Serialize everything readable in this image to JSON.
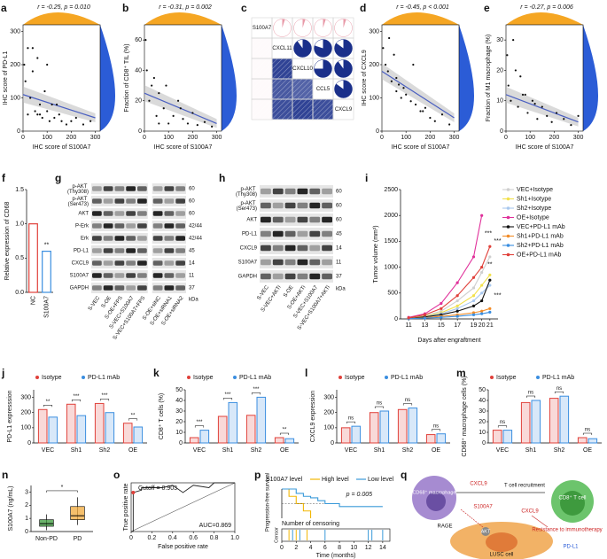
{
  "chart_data": [
    {
      "type": "scatter",
      "panel": "a",
      "stat": "r = -0.25, p = 0.010",
      "xlabel": "IHC score of S100A7",
      "ylabel": "IHC score of PD-L1",
      "xlim": [
        0,
        320
      ],
      "ylim": [
        0,
        320
      ],
      "xticks": [
        0,
        100,
        200,
        300
      ],
      "yticks": [
        0,
        100,
        200,
        300
      ],
      "x": [
        5,
        10,
        20,
        30,
        40,
        50,
        60,
        70,
        80,
        90,
        100,
        110,
        120,
        130,
        150,
        160,
        180,
        200,
        220,
        250,
        280,
        20,
        60,
        100,
        140,
        40,
        70
      ],
      "y": [
        200,
        150,
        250,
        100,
        180,
        60,
        220,
        50,
        40,
        120,
        60,
        30,
        80,
        40,
        50,
        30,
        20,
        30,
        40,
        20,
        30,
        50,
        50,
        200,
        80,
        250,
        80
      ],
      "fit_x": [
        0,
        300
      ],
      "fit_y": [
        110,
        40
      ],
      "top_color": "#f5a623",
      "right_color": "#2b5cd6",
      "fit_color": "#4a5fc1",
      "point_color": "#111"
    },
    {
      "type": "scatter",
      "panel": "b",
      "stat": "r = -0.31, p = 0.002",
      "xlabel": "IHC score of S100A7",
      "ylabel": "Fraction of CD8⁺ TIL (%)",
      "xlim": [
        0,
        320
      ],
      "ylim": [
        0,
        70
      ],
      "xticks": [
        0,
        100,
        200,
        300
      ],
      "yticks": [
        0,
        20,
        40,
        60
      ],
      "x": [
        5,
        10,
        20,
        30,
        50,
        60,
        80,
        100,
        120,
        140,
        160,
        180,
        200,
        220,
        250,
        280,
        40,
        90,
        150,
        60
      ],
      "y": [
        60,
        40,
        20,
        30,
        10,
        25,
        15,
        5,
        10,
        20,
        8,
        5,
        12,
        4,
        6,
        3,
        35,
        30,
        15,
        5
      ],
      "fit_x": [
        0,
        300
      ],
      "fit_y": [
        25,
        5
      ],
      "top_color": "#f5a623",
      "right_color": "#2b5cd6",
      "fit_color": "#4a5fc1",
      "point_color": "#111"
    },
    {
      "type": "corr",
      "panel": "c",
      "labels": [
        "S100A7",
        "CXCL11",
        "CXCL10",
        "CCL5",
        "CXCL9"
      ],
      "matrix": [
        [
          null,
          -0.05,
          -0.05,
          -0.05,
          -0.05
        ],
        [
          -0.05,
          null,
          0.9,
          0.8,
          0.85
        ],
        [
          -0.05,
          0.9,
          null,
          0.75,
          0.9
        ],
        [
          -0.05,
          0.8,
          0.75,
          null,
          0.85
        ],
        [
          -0.05,
          0.85,
          0.9,
          0.85,
          null
        ]
      ],
      "pos_color": "#1a2f8a",
      "neg_color": "#e89aa8"
    },
    {
      "type": "scatter",
      "panel": "d",
      "stat": "r = -0.45, p < 0.001",
      "xlabel": "IHC score of S100A7",
      "ylabel": "IHC score of CXCL9",
      "xlim": [
        0,
        320
      ],
      "ylim": [
        0,
        320
      ],
      "xticks": [
        0,
        100,
        200,
        300
      ],
      "yticks": [
        0,
        100,
        200,
        300
      ],
      "x": [
        5,
        15,
        25,
        40,
        50,
        60,
        70,
        80,
        100,
        120,
        140,
        160,
        180,
        200,
        220,
        250,
        280,
        30,
        90,
        130,
        170,
        60
      ],
      "y": [
        250,
        200,
        180,
        150,
        230,
        120,
        140,
        100,
        110,
        90,
        80,
        60,
        70,
        40,
        30,
        50,
        20,
        280,
        130,
        200,
        60,
        160
      ],
      "fit_x": [
        0,
        300
      ],
      "fit_y": [
        180,
        40
      ],
      "top_color": "#f5a623",
      "right_color": "#2b5cd6",
      "fit_color": "#4a5fc1",
      "point_color": "#111"
    },
    {
      "type": "scatter",
      "panel": "e",
      "stat": "r = -0.27, p = 0.006",
      "xlabel": "IHC score of S100A7",
      "ylabel": "Fraction of M1 macrophage (%)",
      "xlim": [
        0,
        320
      ],
      "ylim": [
        0,
        35
      ],
      "xticks": [
        0,
        100,
        200,
        300
      ],
      "yticks": [
        0,
        10,
        20,
        30
      ],
      "x": [
        5,
        10,
        20,
        40,
        50,
        70,
        90,
        110,
        130,
        150,
        170,
        190,
        210,
        240,
        270,
        300,
        30,
        80,
        120,
        60
      ],
      "y": [
        25,
        15,
        10,
        20,
        8,
        12,
        6,
        10,
        4,
        8,
        5,
        3,
        6,
        4,
        2,
        5,
        30,
        12,
        9,
        18
      ],
      "fit_x": [
        0,
        300
      ],
      "fit_y": [
        12,
        3
      ],
      "top_color": "#f5a623",
      "right_color": "#2b5cd6",
      "fit_color": "#4a5fc1",
      "point_color": "#111"
    },
    {
      "type": "bar",
      "panel": "f",
      "categories": [
        "NC",
        "S100A7"
      ],
      "values": [
        1.0,
        0.6
      ],
      "colors": [
        "#e0403a",
        "#3a8ee0"
      ],
      "ylim": [
        0,
        1.5
      ],
      "yticks": [
        {
          "value": 0,
          "label": "0.0"
        },
        0.5,
        {
          "value": 1,
          "label": "1.0"
        },
        1.5
      ],
      "ylabel": "Relative expression of CD68",
      "annotation": "**"
    },
    {
      "type": "blot",
      "panel": "g",
      "rows": [
        "p-AKT (Thy308)",
        "p-AKT (Ser473)",
        "AKT",
        "P-Erk",
        "Erk",
        "PD-L1",
        "CXCL9",
        "S100A7",
        "GAPDH"
      ],
      "kda": [
        "60",
        "60",
        "60",
        "42/44",
        "42/44",
        "45",
        "14",
        "11",
        "37"
      ],
      "unit": "kDa",
      "lanes": [
        "S-VEC",
        "S-OE",
        "S-OE+FPS",
        "S-VEC+S100A7",
        "S-VEC+S100A7+FPS",
        "S-OE+siNC",
        "S-OE+siRNA1",
        "S-OE+siRNA2"
      ]
    },
    {
      "type": "blot",
      "panel": "h",
      "rows": [
        "p-AKT (Thy308)",
        "p-AKT (Ser473)",
        "AKT",
        "PD-L1",
        "CXCL9",
        "S100A7",
        "GAPDH"
      ],
      "kda": [
        "60",
        "60",
        "60",
        "45",
        "14",
        "11",
        "37"
      ],
      "unit": "kDa",
      "lanes": [
        "S-VEC",
        "S-VEC+AKTi",
        "S-OE",
        "S-OE+AKTi",
        "S-VEC+S100A7",
        "S-VEC+S100A7+AKTi"
      ]
    },
    {
      "type": "line",
      "panel": "i",
      "x": [
        11,
        13,
        15,
        17,
        19,
        20,
        21
      ],
      "xlim": [
        10,
        22
      ],
      "xticks": [
        11,
        13,
        15,
        17,
        19,
        20,
        21
      ],
      "ylim": [
        0,
        2500
      ],
      "yticks": [
        0,
        500,
        1000,
        1500,
        2000,
        2500
      ],
      "xlabel": "Days after engraftment",
      "ylabel": "Tumor volume (mm³)",
      "series": [
        {
          "name": "VEC+Isotype",
          "color": "#cfcfcf",
          "values": [
            20,
            60,
            150,
            350,
            600,
            900,
            1200
          ]
        },
        {
          "name": "Sh1+Isotype",
          "color": "#f2e14c",
          "values": [
            15,
            50,
            120,
            250,
            450,
            650,
            850
          ]
        },
        {
          "name": "Sh2+Isotype",
          "color": "#a9c8ee",
          "values": [
            15,
            40,
            100,
            200,
            350,
            500,
            650
          ]
        },
        {
          "name": "OE+Isotype",
          "color": "#e0309a",
          "values": [
            30,
            100,
            300,
            700,
            1200,
            2000,
            null
          ]
        },
        {
          "name": "VEC+PD-L1 mAb",
          "color": "#111111",
          "values": [
            10,
            40,
            80,
            150,
            250,
            350,
            750
          ]
        },
        {
          "name": "Sh1+PD-L1 mAb",
          "color": "#f28c28",
          "values": [
            10,
            20,
            50,
            80,
            120,
            150,
            200
          ]
        },
        {
          "name": "Sh2+PD-L1 mAb",
          "color": "#3a8ee0",
          "values": [
            5,
            15,
            30,
            50,
            80,
            100,
            130
          ]
        },
        {
          "name": "OE+PD-L1 mAb",
          "color": "#e0403a",
          "values": [
            20,
            80,
            200,
            450,
            800,
            1000,
            1400
          ]
        }
      ],
      "annotations": [
        "***",
        "**",
        "***",
        "***"
      ]
    },
    {
      "type": "group",
      "panel": "j",
      "categories": [
        "VEC",
        "Sh1",
        "Sh2",
        "OE"
      ],
      "ylim": [
        0,
        350
      ],
      "yticks": [
        0,
        100,
        200,
        300
      ],
      "ylabel": "PD-L1 expresssion",
      "series": [
        {
          "name": "Isotype",
          "color": "#e0403a",
          "values": [
            220,
            255,
            260,
            130
          ]
        },
        {
          "name": "PD-L1 mAb",
          "color": "#3a8ee0",
          "values": [
            170,
            180,
            200,
            105
          ]
        }
      ],
      "pair_labels": [
        "**",
        "***",
        "***",
        "**"
      ]
    },
    {
      "type": "group",
      "panel": "k",
      "categories": [
        "VEC",
        "Sh1",
        "Sh2",
        "OE"
      ],
      "ylim": [
        0,
        50
      ],
      "yticks": [
        0,
        10,
        20,
        30,
        40,
        50
      ],
      "ylabel": "CD8⁺ T cells (%)",
      "series": [
        {
          "name": "Isotype",
          "color": "#e0403a",
          "values": [
            5,
            25,
            26,
            5
          ]
        },
        {
          "name": "PD-L1 mAb",
          "color": "#3a8ee0",
          "values": [
            12,
            38,
            43,
            4
          ]
        }
      ],
      "pair_labels": [
        "***",
        "***",
        "***",
        "**"
      ]
    },
    {
      "type": "group",
      "panel": "l",
      "categories": [
        "VEC",
        "Sh1",
        "Sh2",
        "OE"
      ],
      "ylim": [
        0,
        350
      ],
      "yticks": [
        0,
        100,
        200,
        300
      ],
      "ylabel": "CXCL9 expression",
      "series": [
        {
          "name": "Isotype",
          "color": "#e0403a",
          "values": [
            100,
            200,
            220,
            55
          ]
        },
        {
          "name": "PD-L1 mAb",
          "color": "#3a8ee0",
          "values": [
            110,
            210,
            230,
            60
          ]
        }
      ],
      "pair_labels": [
        "ns",
        "ns",
        "ns",
        "ns"
      ]
    },
    {
      "type": "group",
      "panel": "m",
      "categories": [
        "VEC",
        "Sh1",
        "Sh2",
        "OE"
      ],
      "ylim": [
        0,
        50
      ],
      "yticks": [
        0,
        10,
        20,
        30,
        40,
        50
      ],
      "ylabel": "CD68⁺ macrophage cells (%)",
      "series": [
        {
          "name": "Isotype",
          "color": "#e0403a",
          "values": [
            12,
            38,
            42,
            5
          ]
        },
        {
          "name": "PD-L1 mAb",
          "color": "#3a8ee0",
          "values": [
            12,
            40,
            44,
            4
          ]
        }
      ],
      "pair_labels": [
        "ns",
        "ns",
        "ns",
        "ns"
      ]
    },
    {
      "type": "box",
      "panel": "n",
      "ylim": [
        0,
        3.5
      ],
      "yticks": [
        0,
        1,
        2,
        3
      ],
      "ylabel": "S100A7 (ng/mL)",
      "annotation": "*",
      "boxes": [
        {
          "name": "Non-PD",
          "color": "#3a9a3a",
          "min": 0.1,
          "q1": 0.4,
          "median": 0.6,
          "q3": 0.9,
          "max": 1.3
        },
        {
          "name": "PD",
          "color": "#f2a93b",
          "min": 0.5,
          "q1": 0.9,
          "median": 1.2,
          "q3": 1.9,
          "max": 2.6
        }
      ]
    },
    {
      "type": "roc",
      "panel": "o",
      "xlim": [
        0,
        1
      ],
      "ylim": [
        0,
        1
      ],
      "xticks": [
        0,
        0.2,
        0.4,
        0.6,
        0.8,
        {
          "value": 1,
          "label": "1.0"
        }
      ],
      "xlabel": "False positive rate",
      "ylabel": "True positive rate",
      "curve_x": [
        0,
        0.02,
        0.02,
        0.1,
        0.1,
        0.3,
        0.4,
        0.5,
        0.6,
        0.75,
        0.8,
        1
      ],
      "curve_y": [
        0,
        0,
        0.8,
        0.85,
        0.9,
        0.9,
        0.95,
        0.8,
        0.95,
        0.9,
        1,
        1
      ],
      "color": "#222222",
      "cutoff_point": {
        "x": 0.02,
        "y": 0.8
      },
      "point_color": "#e0403a",
      "cutoff_label": "Cutoff = 0.903",
      "auc_label": "AUC=0.869"
    },
    {
      "type": "km",
      "panel": "p",
      "legend_title": "S100A7 level",
      "stat": "p = 0.005",
      "series": [
        {
          "name": "High level",
          "color": "#f2b705",
          "x": [
            0,
            1,
            2,
            3,
            4
          ],
          "y": [
            1,
            0.75,
            0.5,
            0.25,
            0
          ],
          "censor_x": [
            1,
            2,
            3.5
          ]
        },
        {
          "name": "Low level",
          "color": "#3a9ad9",
          "x": [
            0,
            2,
            3,
            4,
            5,
            6,
            8,
            14
          ],
          "y": [
            1,
            0.85,
            0.75,
            0.7,
            0.6,
            0.5,
            0.4,
            0.4
          ],
          "censor_x": [
            1.5,
            2.5,
            6,
            12,
            12.5,
            14
          ]
        }
      ],
      "xlim": [
        0,
        15
      ],
      "ylim": [
        0,
        1
      ],
      "xticks": [
        0,
        2,
        4,
        6,
        8,
        10,
        12,
        14
      ],
      "xlabel": "Time (months)",
      "ylabel": "Progression-free survival",
      "censor_title": "Number of censoring",
      "censor_label": "Censor"
    }
  ],
  "diagram": {
    "panel": "q",
    "labels": [
      "CD68⁺ macrophage",
      "CXCL9",
      "T cell recruitment",
      "CD8⁺ T cell",
      "S100A7",
      "CXCL9",
      "Resistance to immunotherapy",
      "RAGE",
      "AKT",
      "PD-L1",
      "LUSC cell"
    ]
  }
}
